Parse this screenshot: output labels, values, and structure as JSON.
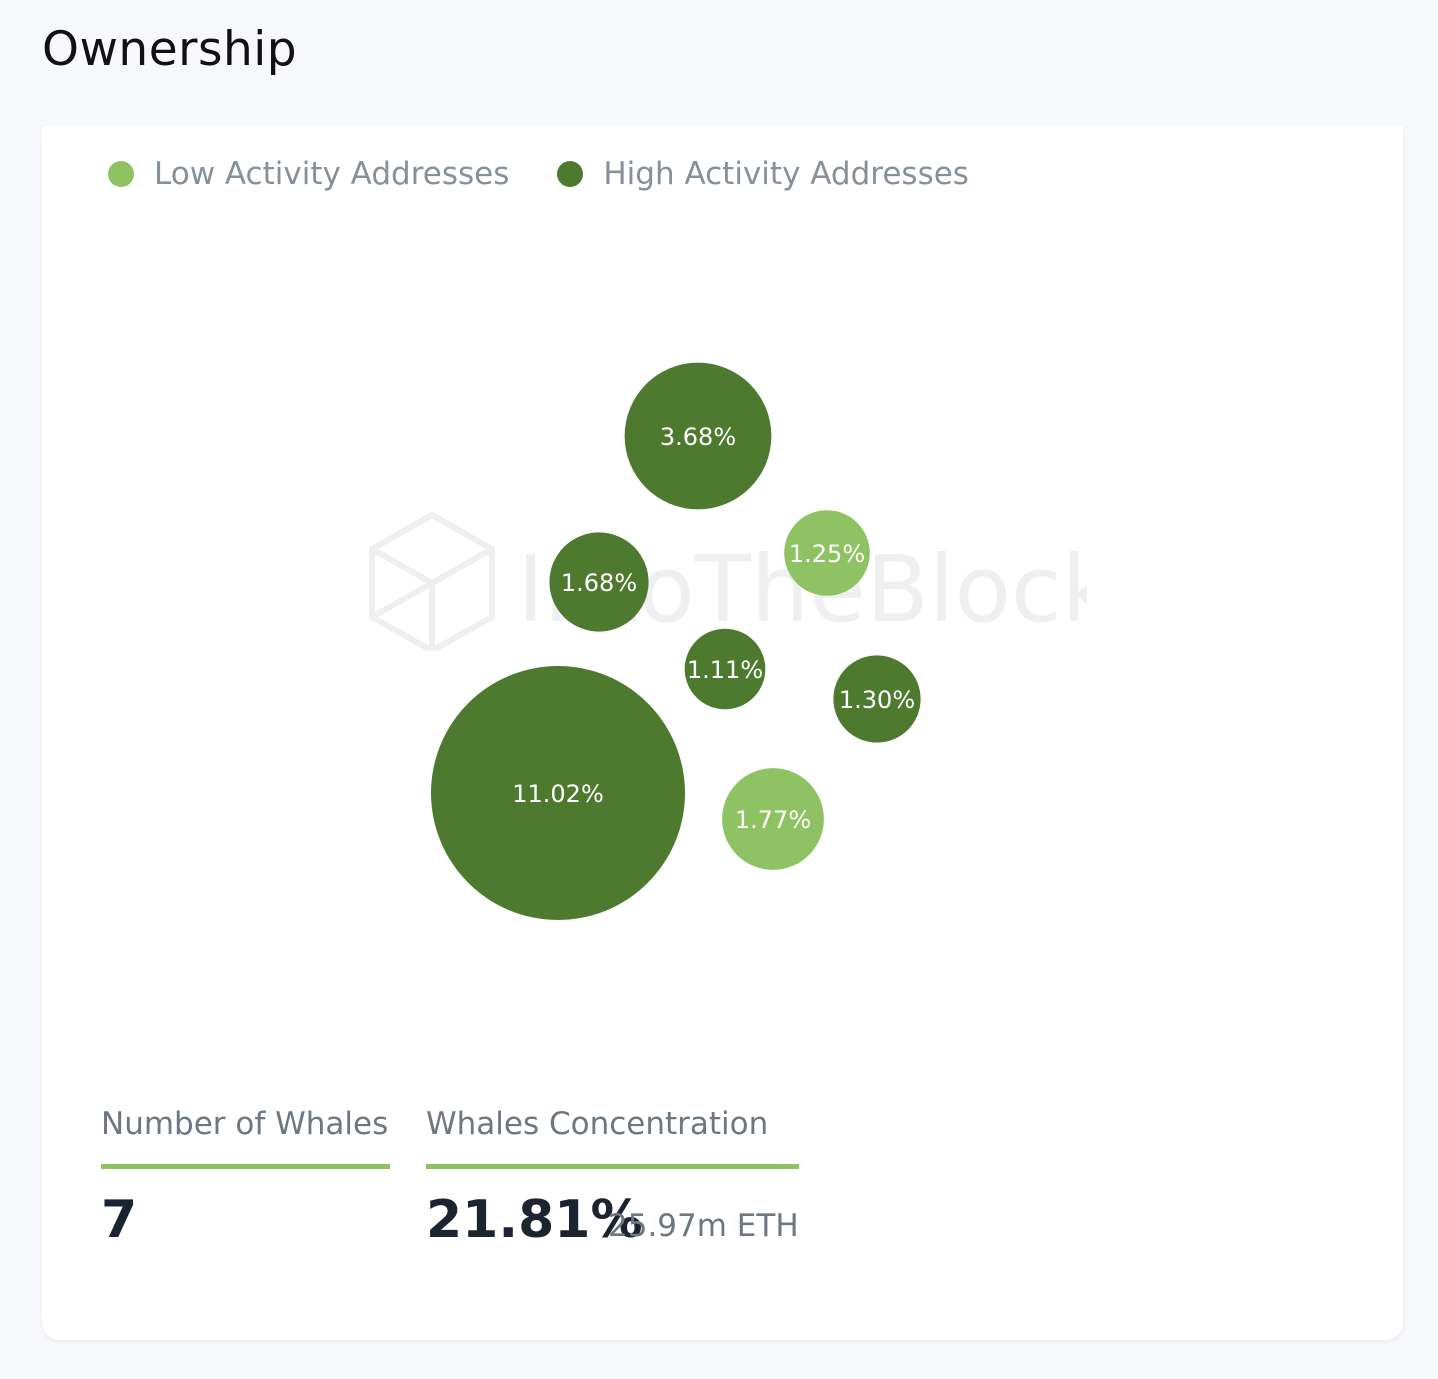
{
  "header": {
    "title": "Ownership"
  },
  "legend": [
    {
      "label": "Low Activity Addresses",
      "color": "#8fc262"
    },
    {
      "label": "High Activity Addresses",
      "color": "#4e7a2f"
    }
  ],
  "watermark": {
    "text": "IntoTheBlock",
    "icon": "cube-logo-icon"
  },
  "chart_data": {
    "type": "bubble",
    "title": "",
    "unit": "%",
    "series_names": [
      "Low Activity Addresses",
      "High Activity Addresses"
    ],
    "bubbles": [
      {
        "label": "11.02%",
        "value": 11.02,
        "category": "High Activity Addresses",
        "color": "#4e7a2f"
      },
      {
        "label": "3.68%",
        "value": 3.68,
        "category": "High Activity Addresses",
        "color": "#4e7a2f"
      },
      {
        "label": "1.77%",
        "value": 1.77,
        "category": "Low Activity Addresses",
        "color": "#8fc262"
      },
      {
        "label": "1.68%",
        "value": 1.68,
        "category": "High Activity Addresses",
        "color": "#4e7a2f"
      },
      {
        "label": "1.30%",
        "value": 1.3,
        "category": "High Activity Addresses",
        "color": "#4e7a2f"
      },
      {
        "label": "1.25%",
        "value": 1.25,
        "category": "Low Activity Addresses",
        "color": "#8fc262"
      },
      {
        "label": "1.11%",
        "value": 1.11,
        "category": "High Activity Addresses",
        "color": "#4e7a2f"
      }
    ]
  },
  "stats": {
    "whales_count": {
      "label": "Number of Whales",
      "value": "7"
    },
    "whales_concentration": {
      "label": "Whales Concentration",
      "value": "21.81%",
      "sub": "25.97m ETH"
    }
  }
}
